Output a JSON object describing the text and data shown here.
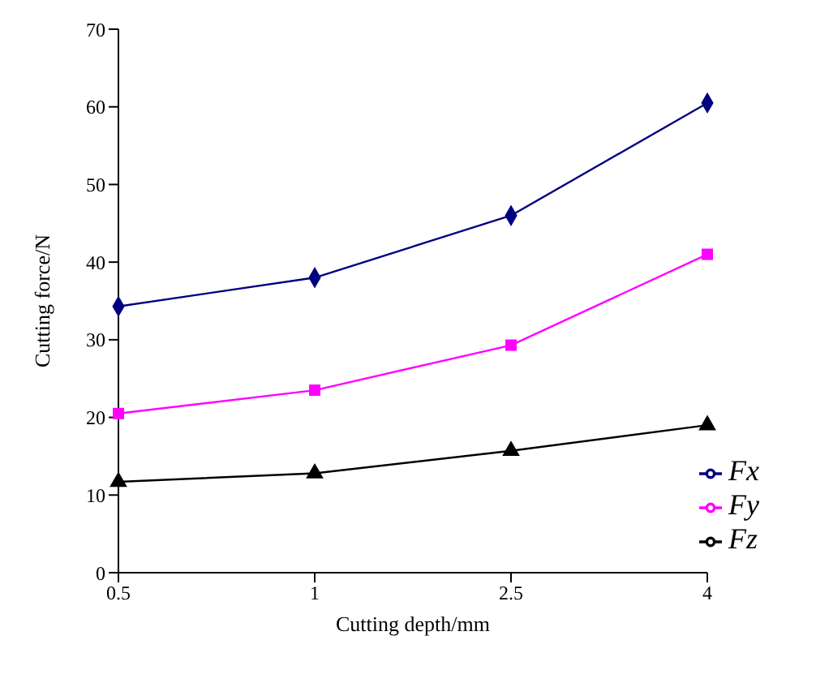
{
  "chart_data": {
    "type": "line",
    "xlabel": "Cutting depth/mm",
    "ylabel": "Cutting force/N",
    "categories": [
      "0.5",
      "1",
      "2.5",
      "4"
    ],
    "series": [
      {
        "name": "Fx",
        "color": "#000080",
        "marker": "diamond",
        "values": [
          34.3,
          38,
          46,
          60.5
        ]
      },
      {
        "name": "Fy",
        "color": "#ff00ff",
        "marker": "square",
        "values": [
          20.5,
          23.5,
          29.3,
          41
        ]
      },
      {
        "name": "Fz",
        "color": "#000000",
        "marker": "triangle",
        "values": [
          11.7,
          12.8,
          15.7,
          19
        ]
      }
    ],
    "ylim": [
      0,
      70
    ],
    "yticks": [
      0,
      10,
      20,
      30,
      40,
      50,
      60,
      70
    ],
    "grid": false,
    "legend": "bottom right",
    "line_style": "solid"
  }
}
